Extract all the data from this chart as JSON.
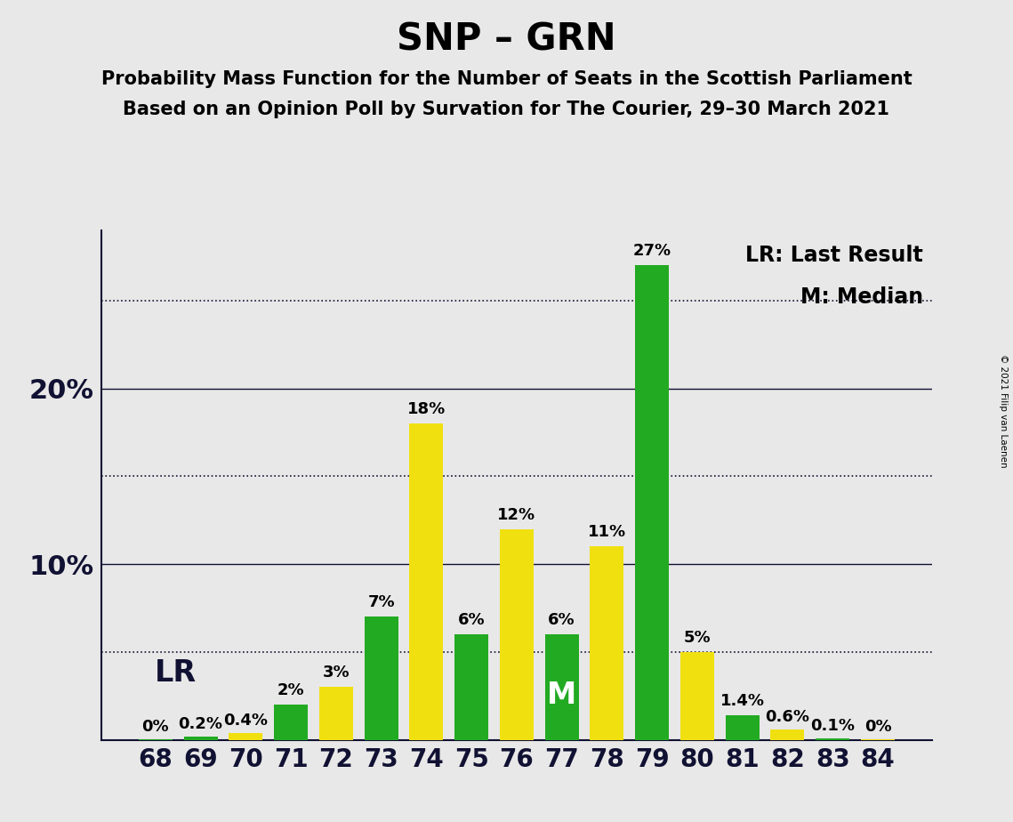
{
  "title": "SNP – GRN",
  "subtitle1": "Probability Mass Function for the Number of Seats in the Scottish Parliament",
  "subtitle2": "Based on an Opinion Poll by Survation for The Courier, 29–30 March 2021",
  "copyright": "© 2021 Filip van Laenen",
  "seats": [
    68,
    69,
    70,
    71,
    72,
    73,
    74,
    75,
    76,
    77,
    78,
    79,
    80,
    81,
    82,
    83,
    84
  ],
  "values": [
    0.05,
    0.2,
    0.4,
    2.0,
    3.0,
    7.0,
    18.0,
    6.0,
    12.0,
    6.0,
    11.0,
    27.0,
    5.0,
    1.4,
    0.6,
    0.1,
    0.05
  ],
  "labels": [
    "0%",
    "0.2%",
    "0.4%",
    "2%",
    "3%",
    "7%",
    "18%",
    "6%",
    "12%",
    "6%",
    "11%",
    "27%",
    "5%",
    "1.4%",
    "0.6%",
    "0.1%",
    "0%"
  ],
  "colors": [
    "#22aa22",
    "#22aa22",
    "#f0e010",
    "#22aa22",
    "#f0e010",
    "#22aa22",
    "#f0e010",
    "#22aa22",
    "#f0e010",
    "#22aa22",
    "#f0e010",
    "#22aa22",
    "#f0e010",
    "#22aa22",
    "#f0e010",
    "#22aa22",
    "#f0e010"
  ],
  "lr_seat": 69,
  "median_seat": 77,
  "background_color": "#e8e8e8",
  "ylim_max": 29,
  "solid_lines": [
    10,
    20
  ],
  "dotted_lines": [
    5,
    15,
    25
  ],
  "legend_lr": "LR: Last Result",
  "legend_m": "M: Median",
  "title_fontsize": 30,
  "subtitle_fontsize": 15,
  "bar_label_fontsize": 13,
  "ytick_fontsize": 22,
  "xtick_fontsize": 20,
  "legend_fontsize": 17,
  "lr_label_fontsize": 24,
  "median_label_fontsize": 24,
  "axis_color": "#111133"
}
